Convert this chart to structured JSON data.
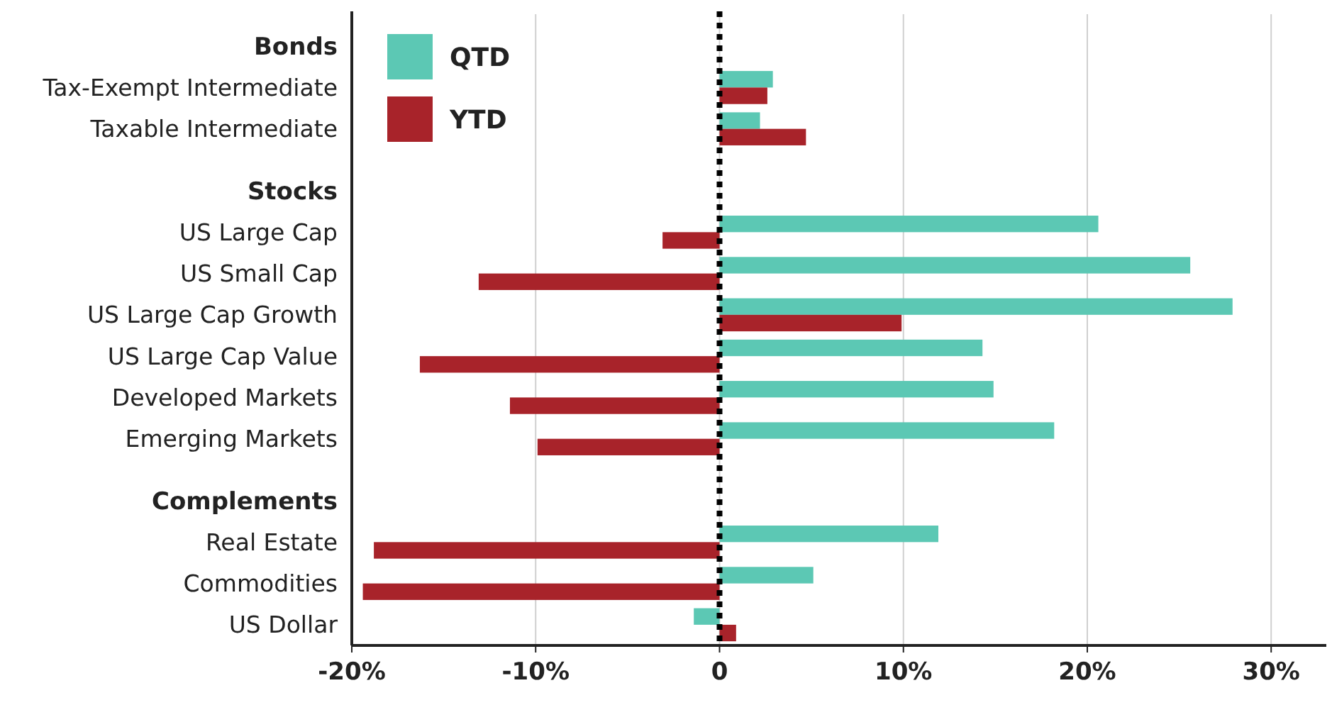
{
  "chart_data": {
    "type": "bar",
    "orientation": "horizontal",
    "categories": [
      "Bonds",
      "Tax-Exempt Intermediate",
      "Taxable Intermediate",
      "Stocks",
      "US Large Cap",
      "US Small Cap",
      "US Large Cap Growth",
      "US Large Cap Value",
      "Developed Markets",
      "Emerging Markets",
      "Complements",
      "Real Estate",
      "Commodities",
      "US Dollar"
    ],
    "series": [
      {
        "name": "QTD",
        "color": "#5cc8b4",
        "values": [
          null,
          2.9,
          2.2,
          null,
          20.6,
          25.6,
          27.9,
          14.3,
          14.9,
          18.2,
          null,
          11.9,
          5.1,
          -1.4
        ]
      },
      {
        "name": "YTD",
        "color": "#a8232a",
        "values": [
          null,
          2.6,
          4.7,
          null,
          -3.1,
          -13.1,
          9.9,
          -16.3,
          -11.4,
          -9.9,
          null,
          -18.8,
          -19.4,
          0.9
        ]
      }
    ],
    "xlim": [
      -20,
      33
    ],
    "xticks": [
      {
        "value": -20,
        "label": "-20%"
      },
      {
        "value": -10,
        "label": "-10%"
      },
      {
        "value": 0,
        "label": "0"
      },
      {
        "value": 10,
        "label": "10%"
      },
      {
        "value": 20,
        "label": "20%"
      },
      {
        "value": 30,
        "label": "30%"
      }
    ],
    "grid": "x",
    "legend": "top left",
    "ref_lines": [
      {
        "axis": "x",
        "value": 0,
        "line_style": "dotted",
        "color": "#000000"
      }
    ]
  }
}
